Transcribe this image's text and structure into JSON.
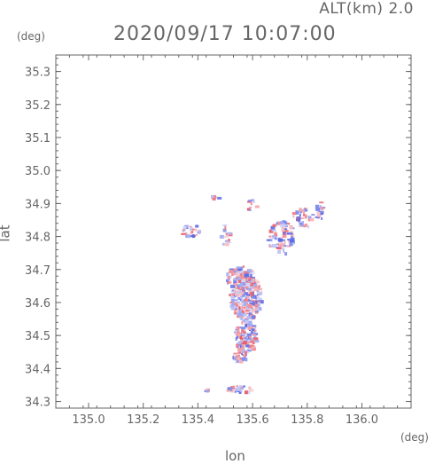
{
  "header": {
    "alt_label": "ALT(km) 2.0",
    "datetime": "2020/09/17 10:07:00"
  },
  "chart_data": {
    "type": "heatmap",
    "title": "2020/09/17 10:07:00",
    "subtitle": "ALT(km) 2.0",
    "xlabel": "lon",
    "ylabel": "lat",
    "x_unit": "(deg)",
    "y_unit": "(deg)",
    "xlim": [
      134.88,
      136.18
    ],
    "ylim": [
      34.28,
      35.35
    ],
    "x_ticks": [
      135.0,
      135.2,
      135.4,
      135.6,
      135.8,
      136.0
    ],
    "x_tick_labels": [
      "135.0",
      "135.2",
      "135.4",
      "135.6",
      "135.8",
      "136.0"
    ],
    "y_ticks": [
      34.3,
      34.4,
      34.5,
      34.6,
      34.7,
      34.8,
      34.9,
      35.0,
      35.1,
      35.2,
      35.3
    ],
    "y_tick_labels": [
      "34.3",
      "34.4",
      "34.5",
      "34.6",
      "34.7",
      "34.8",
      "34.9",
      "35.0",
      "35.1",
      "35.2",
      "35.3"
    ],
    "colors": {
      "positive": "#e85a66",
      "negative": "#5a6ae6",
      "axis": "#666666",
      "background": "#ffffff"
    },
    "clusters": [
      {
        "lon": 135.57,
        "lat": 34.62,
        "rx": 0.06,
        "ry": 0.07,
        "n": 260
      },
      {
        "lon": 135.55,
        "lat": 34.68,
        "rx": 0.05,
        "ry": 0.035,
        "n": 110
      },
      {
        "lon": 135.57,
        "lat": 34.5,
        "rx": 0.04,
        "ry": 0.05,
        "n": 120
      },
      {
        "lon": 135.55,
        "lat": 34.44,
        "rx": 0.025,
        "ry": 0.025,
        "n": 30
      },
      {
        "lon": 135.7,
        "lat": 34.8,
        "rx": 0.05,
        "ry": 0.05,
        "n": 80
      },
      {
        "lon": 135.78,
        "lat": 34.86,
        "rx": 0.04,
        "ry": 0.03,
        "n": 35
      },
      {
        "lon": 135.84,
        "lat": 34.88,
        "rx": 0.015,
        "ry": 0.03,
        "n": 25
      },
      {
        "lon": 135.37,
        "lat": 34.82,
        "rx": 0.04,
        "ry": 0.02,
        "n": 30
      },
      {
        "lon": 135.49,
        "lat": 34.81,
        "rx": 0.025,
        "ry": 0.04,
        "n": 15
      },
      {
        "lon": 135.59,
        "lat": 34.9,
        "rx": 0.02,
        "ry": 0.02,
        "n": 10
      },
      {
        "lon": 135.46,
        "lat": 34.92,
        "rx": 0.015,
        "ry": 0.01,
        "n": 8
      },
      {
        "lon": 135.55,
        "lat": 34.34,
        "rx": 0.05,
        "ry": 0.01,
        "n": 30
      },
      {
        "lon": 135.43,
        "lat": 34.335,
        "rx": 0.01,
        "ry": 0.005,
        "n": 6
      }
    ]
  }
}
